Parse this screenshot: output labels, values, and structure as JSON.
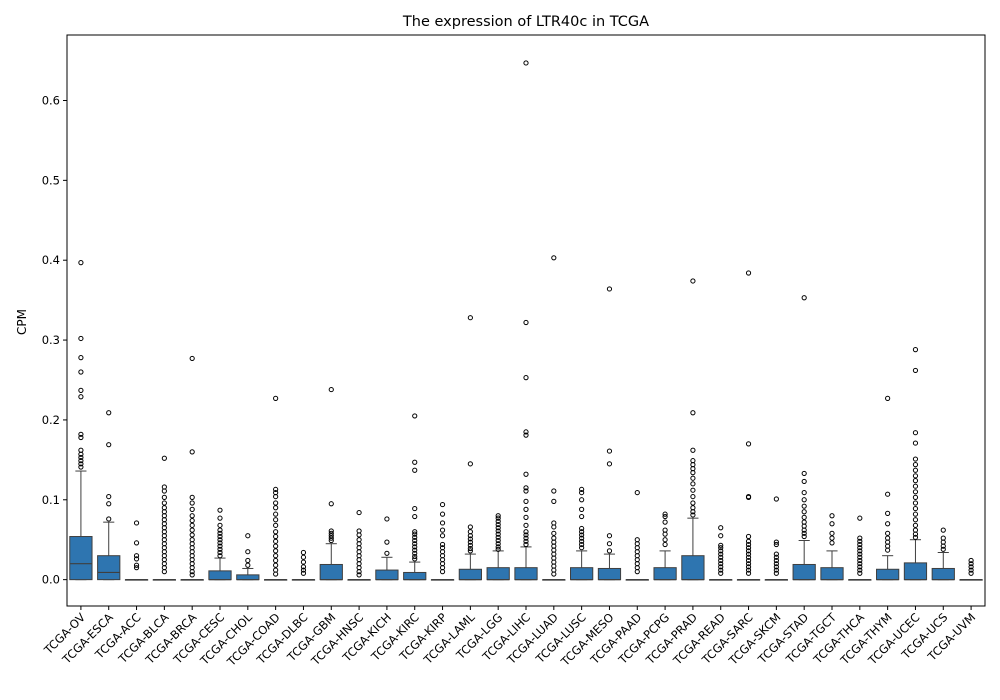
{
  "chart_data": {
    "type": "box",
    "title": "The expression of LTR40c in TCGA",
    "xlabel": "",
    "ylabel": "CPM",
    "ylim": [
      -0.033,
      0.682
    ],
    "yticks": [
      0.0,
      0.1,
      0.2,
      0.3,
      0.4,
      0.5,
      0.6
    ],
    "ytick_labels": [
      "0.0",
      "0.1",
      "0.2",
      "0.3",
      "0.4",
      "0.5",
      "0.6"
    ],
    "grid": false,
    "legend": "none",
    "box_color": "#2e75b0",
    "categories": [
      "TCGA-OV",
      "TCGA-ESCA",
      "TCGA-ACC",
      "TCGA-BLCA",
      "TCGA-BRCA",
      "TCGA-CESC",
      "TCGA-CHOL",
      "TCGA-COAD",
      "TCGA-DLBC",
      "TCGA-GBM",
      "TCGA-HNSC",
      "TCGA-KICH",
      "TCGA-KIRC",
      "TCGA-KIRP",
      "TCGA-LAML",
      "TCGA-LGG",
      "TCGA-LIHC",
      "TCGA-LUAD",
      "TCGA-LUSC",
      "TCGA-MESO",
      "TCGA-PAAD",
      "TCGA-PCPG",
      "TCGA-PRAD",
      "TCGA-READ",
      "TCGA-SARC",
      "TCGA-SKCM",
      "TCGA-STAD",
      "TCGA-TGCT",
      "TCGA-THCA",
      "TCGA-THYM",
      "TCGA-UCEC",
      "TCGA-UCS",
      "TCGA-UVM"
    ],
    "boxes": [
      {
        "q1": 0,
        "median": 0.02,
        "q3": 0.054,
        "whislo": 0,
        "whishi": 0.136,
        "fliers": [
          0.397,
          0.302,
          0.278,
          0.26,
          0.237,
          0.229,
          0.182,
          0.178,
          0.162,
          0.157,
          0.153,
          0.149,
          0.145,
          0.141
        ]
      },
      {
        "q1": 0,
        "median": 0.009,
        "q3": 0.03,
        "whislo": 0,
        "whishi": 0.072,
        "fliers": [
          0.209,
          0.169,
          0.104,
          0.095,
          0.076
        ]
      },
      {
        "q1": 0,
        "median": 0,
        "q3": 0,
        "whislo": 0,
        "whishi": 0,
        "fliers": [
          0.071,
          0.046,
          0.03,
          0.026,
          0.018,
          0.015
        ]
      },
      {
        "q1": 0,
        "median": 0,
        "q3": 0,
        "whislo": 0,
        "whishi": 0,
        "fliers": [
          0.152,
          0.116,
          0.111,
          0.103,
          0.096,
          0.09,
          0.085,
          0.08,
          0.075,
          0.07,
          0.065,
          0.06,
          0.055,
          0.05,
          0.045,
          0.04,
          0.035,
          0.03,
          0.025,
          0.02,
          0.015,
          0.01
        ]
      },
      {
        "q1": 0,
        "median": 0,
        "q3": 0,
        "whislo": 0,
        "whishi": 0,
        "fliers": [
          0.277,
          0.16,
          0.103,
          0.096,
          0.088,
          0.08,
          0.074,
          0.068,
          0.062,
          0.056,
          0.05,
          0.045,
          0.04,
          0.035,
          0.03,
          0.025,
          0.02,
          0.015,
          0.01,
          0.006
        ]
      },
      {
        "q1": 0,
        "median": 0,
        "q3": 0.011,
        "whislo": 0,
        "whishi": 0.027,
        "fliers": [
          0.087,
          0.077,
          0.068,
          0.062,
          0.058,
          0.054,
          0.05,
          0.046,
          0.042,
          0.038,
          0.034,
          0.03
        ]
      },
      {
        "q1": 0,
        "median": 0,
        "q3": 0.006,
        "whislo": 0,
        "whishi": 0.014,
        "fliers": [
          0.055,
          0.035,
          0.024,
          0.018
        ]
      },
      {
        "q1": 0,
        "median": 0,
        "q3": 0,
        "whislo": 0,
        "whishi": 0,
        "fliers": [
          0.227,
          0.113,
          0.109,
          0.104,
          0.096,
          0.09,
          0.082,
          0.075,
          0.068,
          0.06,
          0.054,
          0.048,
          0.042,
          0.036,
          0.03,
          0.024,
          0.018,
          0.012,
          0.007
        ]
      },
      {
        "q1": 0,
        "median": 0,
        "q3": 0,
        "whislo": 0,
        "whishi": 0,
        "fliers": [
          0.034,
          0.028,
          0.022,
          0.016,
          0.012,
          0.008
        ]
      },
      {
        "q1": 0,
        "median": 0,
        "q3": 0.019,
        "whislo": 0,
        "whishi": 0.045,
        "fliers": [
          0.238,
          0.095,
          0.061,
          0.058,
          0.055,
          0.052,
          0.049
        ]
      },
      {
        "q1": 0,
        "median": 0,
        "q3": 0,
        "whislo": 0,
        "whishi": 0,
        "fliers": [
          0.084,
          0.061,
          0.056,
          0.05,
          0.045,
          0.04,
          0.035,
          0.03,
          0.025,
          0.02,
          0.015,
          0.01,
          0.006
        ]
      },
      {
        "q1": 0,
        "median": 0,
        "q3": 0.012,
        "whislo": 0,
        "whishi": 0.028,
        "fliers": [
          0.076,
          0.047,
          0.033
        ]
      },
      {
        "q1": 0,
        "median": 0,
        "q3": 0.009,
        "whislo": 0,
        "whishi": 0.022,
        "fliers": [
          0.205,
          0.147,
          0.137,
          0.089,
          0.079,
          0.06,
          0.057,
          0.053,
          0.049,
          0.045,
          0.041,
          0.037,
          0.033,
          0.029,
          0.026
        ]
      },
      {
        "q1": 0,
        "median": 0,
        "q3": 0,
        "whislo": 0,
        "whishi": 0,
        "fliers": [
          0.094,
          0.082,
          0.071,
          0.062,
          0.055,
          0.044,
          0.04,
          0.035,
          0.03,
          0.025,
          0.02,
          0.015,
          0.01
        ]
      },
      {
        "q1": 0,
        "median": 0,
        "q3": 0.013,
        "whislo": 0,
        "whishi": 0.032,
        "fliers": [
          0.328,
          0.145,
          0.066,
          0.06,
          0.055,
          0.051,
          0.047,
          0.043,
          0.039,
          0.036
        ]
      },
      {
        "q1": 0,
        "median": 0,
        "q3": 0.015,
        "whislo": 0,
        "whishi": 0.036,
        "fliers": [
          0.08,
          0.077,
          0.073,
          0.069,
          0.065,
          0.061,
          0.057,
          0.053,
          0.049,
          0.045,
          0.041,
          0.038
        ]
      },
      {
        "q1": 0,
        "median": 0,
        "q3": 0.015,
        "whislo": 0,
        "whishi": 0.041,
        "fliers": [
          0.647,
          0.322,
          0.253,
          0.185,
          0.181,
          0.132,
          0.115,
          0.111,
          0.098,
          0.088,
          0.078,
          0.068,
          0.06,
          0.056,
          0.052,
          0.048,
          0.044
        ]
      },
      {
        "q1": 0,
        "median": 0,
        "q3": 0,
        "whislo": 0,
        "whishi": 0,
        "fliers": [
          0.403,
          0.111,
          0.098,
          0.071,
          0.066,
          0.058,
          0.052,
          0.047,
          0.042,
          0.037,
          0.032,
          0.027,
          0.022,
          0.017,
          0.012,
          0.007
        ]
      },
      {
        "q1": 0,
        "median": 0,
        "q3": 0.015,
        "whislo": 0,
        "whishi": 0.036,
        "fliers": [
          0.113,
          0.109,
          0.1,
          0.088,
          0.079,
          0.064,
          0.06,
          0.056,
          0.052,
          0.048,
          0.044,
          0.04
        ]
      },
      {
        "q1": 0,
        "median": 0,
        "q3": 0.014,
        "whislo": 0,
        "whishi": 0.032,
        "fliers": [
          0.364,
          0.161,
          0.145,
          0.055,
          0.045,
          0.036
        ]
      },
      {
        "q1": 0,
        "median": 0,
        "q3": 0,
        "whislo": 0,
        "whishi": 0,
        "fliers": [
          0.109,
          0.05,
          0.045,
          0.04,
          0.035,
          0.03,
          0.025,
          0.02,
          0.015,
          0.01
        ]
      },
      {
        "q1": 0,
        "median": 0,
        "q3": 0.015,
        "whislo": 0,
        "whishi": 0.036,
        "fliers": [
          0.082,
          0.079,
          0.072,
          0.062,
          0.057,
          0.05,
          0.044
        ]
      },
      {
        "q1": 0,
        "median": 0,
        "q3": 0.03,
        "whislo": 0,
        "whishi": 0.077,
        "fliers": [
          0.374,
          0.209,
          0.162,
          0.149,
          0.144,
          0.139,
          0.134,
          0.127,
          0.12,
          0.112,
          0.104,
          0.096,
          0.09,
          0.085,
          0.081
        ]
      },
      {
        "q1": 0,
        "median": 0,
        "q3": 0,
        "whislo": 0,
        "whishi": 0,
        "fliers": [
          0.065,
          0.055,
          0.043,
          0.04,
          0.036,
          0.032,
          0.028,
          0.024,
          0.02,
          0.016,
          0.012,
          0.008
        ]
      },
      {
        "q1": 0,
        "median": 0,
        "q3": 0,
        "whislo": 0,
        "whishi": 0,
        "fliers": [
          0.384,
          0.17,
          0.104,
          0.103,
          0.054,
          0.048,
          0.044,
          0.04,
          0.036,
          0.032,
          0.028,
          0.024,
          0.02,
          0.016,
          0.012,
          0.008
        ]
      },
      {
        "q1": 0,
        "median": 0,
        "q3": 0,
        "whislo": 0,
        "whishi": 0,
        "fliers": [
          0.101,
          0.047,
          0.044,
          0.032,
          0.028,
          0.024,
          0.02,
          0.016,
          0.012,
          0.008
        ]
      },
      {
        "q1": 0,
        "median": 0,
        "q3": 0.019,
        "whislo": 0,
        "whishi": 0.049,
        "fliers": [
          0.353,
          0.133,
          0.123,
          0.109,
          0.1,
          0.092,
          0.085,
          0.078,
          0.072,
          0.067,
          0.062,
          0.058,
          0.054
        ]
      },
      {
        "q1": 0,
        "median": 0,
        "q3": 0.015,
        "whislo": 0,
        "whishi": 0.036,
        "fliers": [
          0.08,
          0.07,
          0.058,
          0.052,
          0.046
        ]
      },
      {
        "q1": 0,
        "median": 0,
        "q3": 0,
        "whislo": 0,
        "whishi": 0,
        "fliers": [
          0.077,
          0.052,
          0.048,
          0.044,
          0.04,
          0.036,
          0.032,
          0.028,
          0.024,
          0.02,
          0.016,
          0.012,
          0.008
        ]
      },
      {
        "q1": 0,
        "median": 0,
        "q3": 0.013,
        "whislo": 0,
        "whishi": 0.03,
        "fliers": [
          0.227,
          0.107,
          0.083,
          0.07,
          0.058,
          0.052,
          0.047,
          0.042,
          0.037
        ]
      },
      {
        "q1": 0,
        "median": 0,
        "q3": 0.021,
        "whislo": 0,
        "whishi": 0.05,
        "fliers": [
          0.288,
          0.262,
          0.184,
          0.171,
          0.151,
          0.144,
          0.137,
          0.13,
          0.124,
          0.117,
          0.11,
          0.103,
          0.096,
          0.089,
          0.082,
          0.075,
          0.068,
          0.062,
          0.057,
          0.053
        ]
      },
      {
        "q1": 0,
        "median": 0,
        "q3": 0.014,
        "whislo": 0,
        "whishi": 0.034,
        "fliers": [
          0.062,
          0.052,
          0.047,
          0.042,
          0.038
        ]
      },
      {
        "q1": 0,
        "median": 0,
        "q3": 0,
        "whislo": 0,
        "whishi": 0,
        "fliers": [
          0.024,
          0.02,
          0.016,
          0.012,
          0.008
        ]
      }
    ]
  }
}
